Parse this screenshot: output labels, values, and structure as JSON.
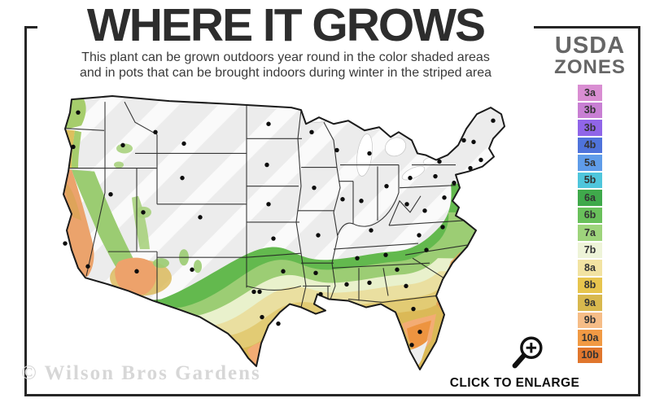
{
  "title": "WHERE IT GROWS",
  "subtitle_line1": "This plant can be grown outdoors year round in the color shaded areas",
  "subtitle_line2": "and in pots that can be brought indoors during winter in the striped area",
  "legend": {
    "heading_line1": "USDA",
    "heading_line2": "ZONES",
    "zones": [
      {
        "label": "3a",
        "color": "#d98ed2"
      },
      {
        "label": "3b",
        "color": "#c87fd3"
      },
      {
        "label": "3b",
        "color": "#9065e8"
      },
      {
        "label": "4b",
        "color": "#4f73db"
      },
      {
        "label": "5a",
        "color": "#5f9ce9"
      },
      {
        "label": "5b",
        "color": "#4fc6dc"
      },
      {
        "label": "6a",
        "color": "#3fa94b"
      },
      {
        "label": "6b",
        "color": "#69c05b"
      },
      {
        "label": "7a",
        "color": "#9ed47c"
      },
      {
        "label": "7b",
        "color": "#eef4d8"
      },
      {
        "label": "8a",
        "color": "#f2e3a2"
      },
      {
        "label": "8b",
        "color": "#e7c54e"
      },
      {
        "label": "9a",
        "color": "#d8b84e"
      },
      {
        "label": "9b",
        "color": "#f6bd87"
      },
      {
        "label": "10a",
        "color": "#f19a44"
      },
      {
        "label": "10b",
        "color": "#e0762d"
      }
    ]
  },
  "enlarge_label": "CLICK TO ENLARGE",
  "watermark": "© Wilson Bros Gardens",
  "colors": {
    "frame_border": "#262626",
    "title_text": "#2d2d2d",
    "legend_heading": "#666666",
    "striped_area_gray": "#ececec",
    "watermark_gray": "#d7d7d7"
  }
}
